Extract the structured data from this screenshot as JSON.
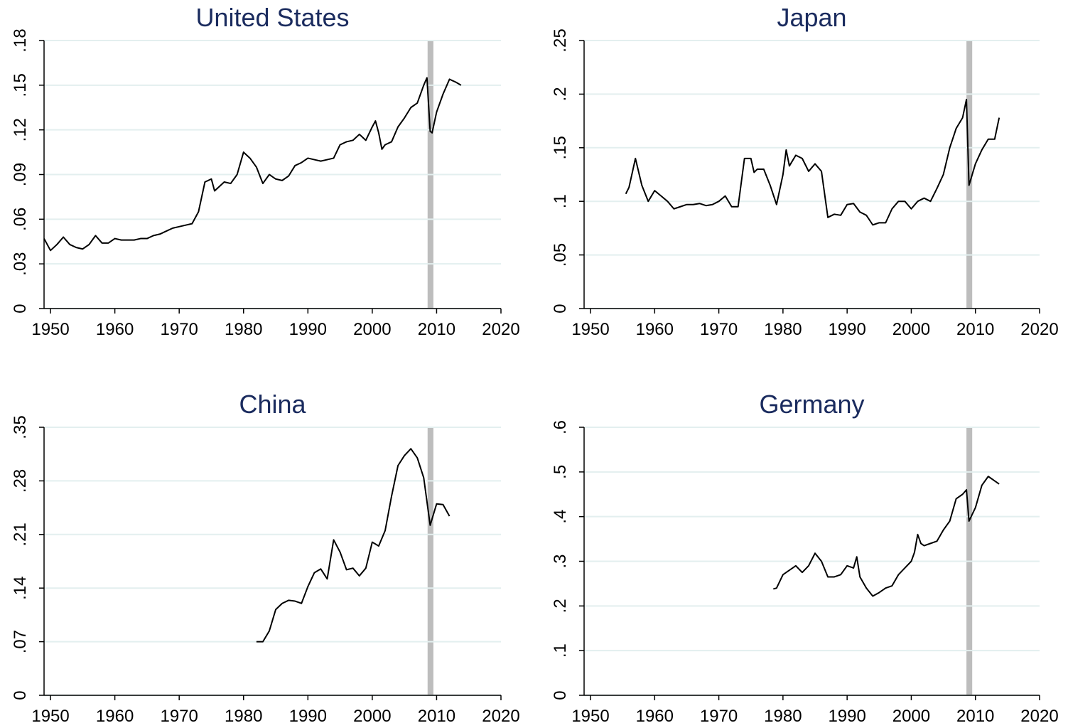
{
  "chart_data": [
    {
      "type": "line",
      "title": "United States",
      "color": "#000000",
      "grid": true,
      "xlim": [
        1949,
        2020
      ],
      "xticks": [
        1950,
        1960,
        1970,
        1980,
        1990,
        2000,
        2010,
        2020
      ],
      "ylim": [
        0,
        0.18
      ],
      "yticks": [
        0,
        {
          "value": 0.03,
          "label": ".03"
        },
        {
          "value": 0.06,
          "label": ".06"
        },
        {
          "value": 0.09,
          "label": ".09"
        },
        {
          "value": 0.12,
          "label": ".12"
        },
        {
          "value": 0.15,
          "label": ".15"
        },
        {
          "value": 0.18,
          "label": ".18"
        }
      ],
      "bands": [
        {
          "x0": 2008.6,
          "x1": 2009.5,
          "color": "#bdbdbd"
        }
      ],
      "x": [
        1949,
        1950,
        1951,
        1952,
        1953,
        1954,
        1955,
        1956,
        1957,
        1958,
        1959,
        1960,
        1961,
        1962,
        1963,
        1964,
        1965,
        1966,
        1967,
        1968,
        1969,
        1970,
        1971,
        1972,
        1973,
        1974,
        1975,
        1975.5,
        1976,
        1977,
        1978,
        1979,
        1980,
        1981,
        1982,
        1983,
        1984,
        1985,
        1986,
        1987,
        1988,
        1989,
        1990,
        1991,
        1992,
        1993,
        1994,
        1995,
        1996,
        1997,
        1998,
        1999,
        2000,
        2000.5,
        2001,
        2001.5,
        2002,
        2003,
        2004,
        2005,
        2006,
        2007,
        2008,
        2008.5,
        2009,
        2009.3,
        2010,
        2011,
        2012,
        2013,
        2013.8
      ],
      "values": [
        0.047,
        0.039,
        0.043,
        0.048,
        0.043,
        0.041,
        0.04,
        0.043,
        0.049,
        0.044,
        0.044,
        0.047,
        0.046,
        0.046,
        0.046,
        0.047,
        0.047,
        0.049,
        0.05,
        0.052,
        0.054,
        0.055,
        0.056,
        0.057,
        0.065,
        0.085,
        0.087,
        0.079,
        0.081,
        0.085,
        0.084,
        0.09,
        0.105,
        0.101,
        0.095,
        0.084,
        0.09,
        0.087,
        0.086,
        0.089,
        0.096,
        0.098,
        0.101,
        0.1,
        0.099,
        0.1,
        0.101,
        0.11,
        0.112,
        0.113,
        0.117,
        0.113,
        0.122,
        0.126,
        0.118,
        0.107,
        0.11,
        0.112,
        0.122,
        0.128,
        0.135,
        0.138,
        0.15,
        0.155,
        0.119,
        0.118,
        0.132,
        0.144,
        0.154,
        0.152,
        0.15
      ]
    },
    {
      "type": "line",
      "title": "Japan",
      "color": "#000000",
      "grid": true,
      "xlim": [
        1949,
        2020
      ],
      "xticks": [
        1950,
        1960,
        1970,
        1980,
        1990,
        2000,
        2010,
        2020
      ],
      "ylim": [
        0,
        0.25
      ],
      "yticks": [
        0,
        {
          "value": 0.05,
          "label": ".05"
        },
        {
          "value": 0.1,
          "label": ".1"
        },
        {
          "value": 0.15,
          "label": ".15"
        },
        {
          "value": 0.2,
          "label": ".2"
        },
        {
          "value": 0.25,
          "label": ".25"
        }
      ],
      "bands": [
        {
          "x0": 2008.6,
          "x1": 2009.5,
          "color": "#bdbdbd"
        }
      ],
      "x": [
        1955.5,
        1956,
        1957,
        1958,
        1959,
        1960,
        1961,
        1962,
        1963,
        1964,
        1965,
        1966,
        1967,
        1968,
        1969,
        1970,
        1971,
        1972,
        1973,
        1974,
        1975,
        1975.5,
        1976,
        1977,
        1978,
        1979,
        1980,
        1980.5,
        1981,
        1982,
        1983,
        1984,
        1985,
        1986,
        1987,
        1988,
        1989,
        1990,
        1991,
        1992,
        1993,
        1994,
        1995,
        1996,
        1997,
        1998,
        1999,
        2000,
        2001,
        2002,
        2003,
        2004,
        2005,
        2006,
        2007,
        2008,
        2008.6,
        2009,
        2010,
        2011,
        2012,
        2013,
        2013.7
      ],
      "values": [
        0.107,
        0.113,
        0.14,
        0.115,
        0.1,
        0.11,
        0.105,
        0.1,
        0.093,
        0.095,
        0.097,
        0.097,
        0.098,
        0.096,
        0.097,
        0.1,
        0.105,
        0.095,
        0.095,
        0.14,
        0.14,
        0.127,
        0.13,
        0.13,
        0.115,
        0.097,
        0.125,
        0.148,
        0.133,
        0.143,
        0.14,
        0.128,
        0.135,
        0.128,
        0.085,
        0.088,
        0.087,
        0.097,
        0.098,
        0.09,
        0.087,
        0.078,
        0.08,
        0.08,
        0.093,
        0.1,
        0.1,
        0.093,
        0.1,
        0.103,
        0.1,
        0.112,
        0.125,
        0.15,
        0.168,
        0.178,
        0.195,
        0.115,
        0.135,
        0.148,
        0.158,
        0.158,
        0.178
      ]
    },
    {
      "type": "line",
      "title": "China",
      "color": "#000000",
      "grid": true,
      "xlim": [
        1949,
        2020
      ],
      "xticks": [
        1950,
        1960,
        1970,
        1980,
        1990,
        2000,
        2010,
        2020
      ],
      "ylim": [
        0,
        0.35
      ],
      "yticks": [
        0,
        {
          "value": 0.07,
          "label": ".07"
        },
        {
          "value": 0.14,
          "label": ".14"
        },
        {
          "value": 0.21,
          "label": ".21"
        },
        {
          "value": 0.28,
          "label": ".28"
        },
        {
          "value": 0.35,
          "label": ".35"
        }
      ],
      "bands": [
        {
          "x0": 2008.6,
          "x1": 2009.5,
          "color": "#bdbdbd"
        }
      ],
      "x": [
        1982,
        1983,
        1984,
        1985,
        1986,
        1987,
        1988,
        1989,
        1990,
        1991,
        1992,
        1993,
        1994,
        1995,
        1996,
        1997,
        1998,
        1999,
        2000,
        2001,
        2002,
        2003,
        2004,
        2005,
        2006,
        2007,
        2008,
        2009,
        2010,
        2011,
        2012
      ],
      "values": [
        0.07,
        0.07,
        0.084,
        0.112,
        0.12,
        0.124,
        0.123,
        0.12,
        0.142,
        0.16,
        0.165,
        0.152,
        0.203,
        0.187,
        0.164,
        0.166,
        0.156,
        0.166,
        0.2,
        0.195,
        0.215,
        0.26,
        0.3,
        0.313,
        0.322,
        0.31,
        0.284,
        0.222,
        0.25,
        0.249,
        0.234
      ]
    },
    {
      "type": "line",
      "title": "Germany",
      "color": "#000000",
      "grid": true,
      "xlim": [
        1949,
        2020
      ],
      "xticks": [
        1950,
        1960,
        1970,
        1980,
        1990,
        2000,
        2010,
        2020
      ],
      "ylim": [
        0,
        0.6
      ],
      "yticks": [
        0,
        {
          "value": 0.1,
          "label": ".1"
        },
        {
          "value": 0.2,
          "label": ".2"
        },
        {
          "value": 0.3,
          "label": ".3"
        },
        {
          "value": 0.4,
          "label": ".4"
        },
        {
          "value": 0.5,
          "label": ".5"
        },
        {
          "value": 0.6,
          "label": ".6"
        }
      ],
      "bands": [
        {
          "x0": 2008.6,
          "x1": 2009.5,
          "color": "#bdbdbd"
        }
      ],
      "x": [
        1978.5,
        1979,
        1980,
        1981,
        1982,
        1983,
        1984,
        1985,
        1986,
        1987,
        1988,
        1989,
        1990,
        1991,
        1991.5,
        1992,
        1993,
        1994,
        1995,
        1996,
        1997,
        1998,
        1999,
        2000,
        2000.5,
        2001,
        2001.5,
        2002,
        2003,
        2004,
        2005,
        2006,
        2007,
        2008,
        2008.6,
        2009,
        2010,
        2011,
        2012,
        2013,
        2013.7
      ],
      "values": [
        0.238,
        0.24,
        0.27,
        0.28,
        0.29,
        0.275,
        0.29,
        0.318,
        0.3,
        0.265,
        0.265,
        0.27,
        0.29,
        0.285,
        0.31,
        0.265,
        0.24,
        0.222,
        0.23,
        0.24,
        0.245,
        0.27,
        0.285,
        0.3,
        0.32,
        0.36,
        0.34,
        0.335,
        0.34,
        0.345,
        0.37,
        0.39,
        0.44,
        0.45,
        0.46,
        0.39,
        0.42,
        0.47,
        0.49,
        0.48,
        0.473
      ]
    }
  ]
}
